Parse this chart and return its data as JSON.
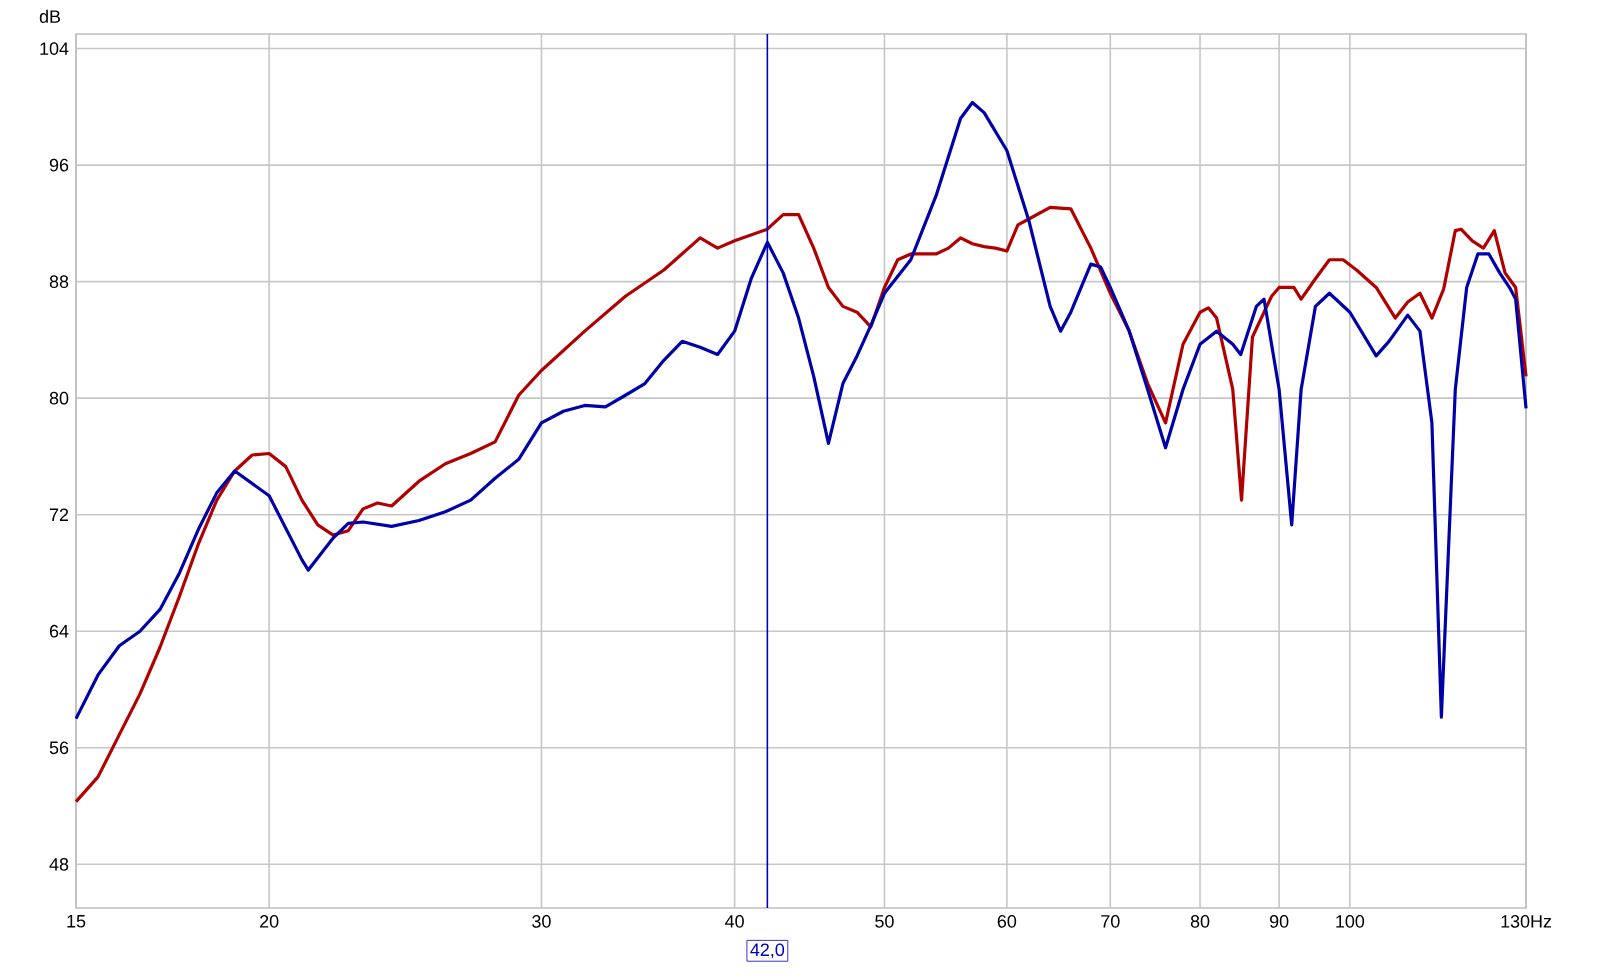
{
  "chart_data": {
    "type": "line",
    "ylabel": "dB",
    "log": "x",
    "grid": true,
    "line_style": "solid",
    "xlim": [
      15,
      130
    ],
    "ylim": [
      45,
      105
    ],
    "xticks": [
      15,
      20,
      30,
      40,
      50,
      60,
      70,
      80,
      90,
      100,
      {
        "value": 130,
        "label": "130Hz"
      }
    ],
    "yticks": [
      48,
      56,
      64,
      72,
      80,
      88,
      96,
      104
    ],
    "ref_lines": [
      {
        "axis": "x",
        "value": 42,
        "label": "42,0",
        "color": "#0000c0"
      }
    ],
    "series": [
      {
        "color": "#b00000",
        "x": [
          15,
          15.5,
          16,
          16.5,
          17,
          17.5,
          18,
          18.5,
          19,
          19.5,
          20,
          20.5,
          21,
          21.5,
          22,
          22.5,
          23,
          23.5,
          24,
          25,
          26,
          27,
          28,
          29,
          30,
          32,
          34,
          36,
          38,
          39,
          40,
          42,
          43,
          44,
          45,
          46,
          47,
          48,
          49,
          50,
          51,
          52,
          54,
          55,
          56,
          57,
          58,
          59,
          60,
          61,
          62,
          64,
          66,
          68,
          70,
          72,
          74,
          76,
          78,
          80,
          81,
          82,
          84,
          85.1,
          86.5,
          88,
          89,
          90,
          92,
          93,
          95,
          97,
          99,
          101,
          104,
          107,
          109,
          111,
          113,
          115,
          117,
          118,
          120,
          122,
          124,
          126,
          128,
          130
        ],
        "values": [
          52.3,
          54,
          56.9,
          59.7,
          62.9,
          66.4,
          70,
          73,
          75,
          76.1,
          76.2,
          75.3,
          73,
          71.3,
          70.6,
          70.9,
          72.4,
          72.8,
          72.6,
          74.3,
          75.5,
          76.2,
          77,
          80.2,
          81.9,
          84.6,
          87,
          88.8,
          91,
          90.3,
          90.8,
          91.6,
          92.6,
          92.6,
          90.3,
          87.6,
          86.3,
          85.9,
          84.9,
          87.6,
          89.5,
          89.9,
          89.9,
          90.3,
          91,
          90.6,
          90.4,
          90.3,
          90.1,
          91.9,
          92.3,
          93.1,
          93,
          90.3,
          87.2,
          84.6,
          81,
          78.3,
          83.7,
          85.9,
          86.2,
          85.5,
          80.6,
          73,
          84.2,
          85.9,
          87,
          87.6,
          87.6,
          86.8,
          88.2,
          89.5,
          89.5,
          88.8,
          87.6,
          85.5,
          86.6,
          87.2,
          85.5,
          87.5,
          91.5,
          91.6,
          90.8,
          90.3,
          91.5,
          88.6,
          87.6,
          81.5
        ]
      },
      {
        "color": "#0000a8",
        "x": [
          15,
          15.5,
          16,
          16.5,
          17,
          17.5,
          18,
          18.5,
          19,
          20,
          21,
          21.2,
          22,
          22.5,
          23,
          24,
          25,
          26,
          27,
          28,
          29,
          30,
          31,
          32,
          33,
          34,
          35,
          36,
          37,
          38,
          39,
          40,
          41,
          42,
          43,
          44,
          45,
          46,
          47,
          48,
          49,
          50,
          52,
          54,
          56,
          57,
          58,
          60,
          62,
          64,
          65,
          66,
          68,
          69,
          70,
          72,
          74,
          76,
          78,
          80,
          82,
          84,
          85,
          87,
          88,
          90,
          91.7,
          93,
          95,
          97,
          100,
          104,
          106,
          109,
          111,
          113,
          114.6,
          117,
          119,
          121,
          123,
          125,
          127,
          128,
          130
        ],
        "values": [
          58,
          61,
          63,
          64,
          65.5,
          68,
          71,
          73.5,
          75,
          73.3,
          68.9,
          68.2,
          70.4,
          71.4,
          71.5,
          71.2,
          71.6,
          72.2,
          73,
          74.5,
          75.8,
          78.3,
          79.1,
          79.5,
          79.4,
          80.2,
          81,
          82.6,
          83.9,
          83.5,
          83,
          84.6,
          88.2,
          90.7,
          88.6,
          85.5,
          81.5,
          76.9,
          81,
          82.9,
          85,
          87.2,
          89.5,
          93.9,
          99.2,
          100.3,
          99.6,
          97,
          92.2,
          86.3,
          84.6,
          85.9,
          89.2,
          89,
          87.6,
          84.6,
          80.6,
          76.6,
          80.6,
          83.7,
          84.6,
          83.7,
          83,
          86.3,
          86.8,
          80.6,
          71.3,
          80.6,
          86.3,
          87.2,
          85.9,
          82.9,
          83.9,
          85.7,
          84.6,
          78.3,
          58.1,
          80.6,
          87.6,
          89.9,
          89.9,
          88.6,
          87.5,
          86.8,
          79.3
        ]
      }
    ]
  }
}
